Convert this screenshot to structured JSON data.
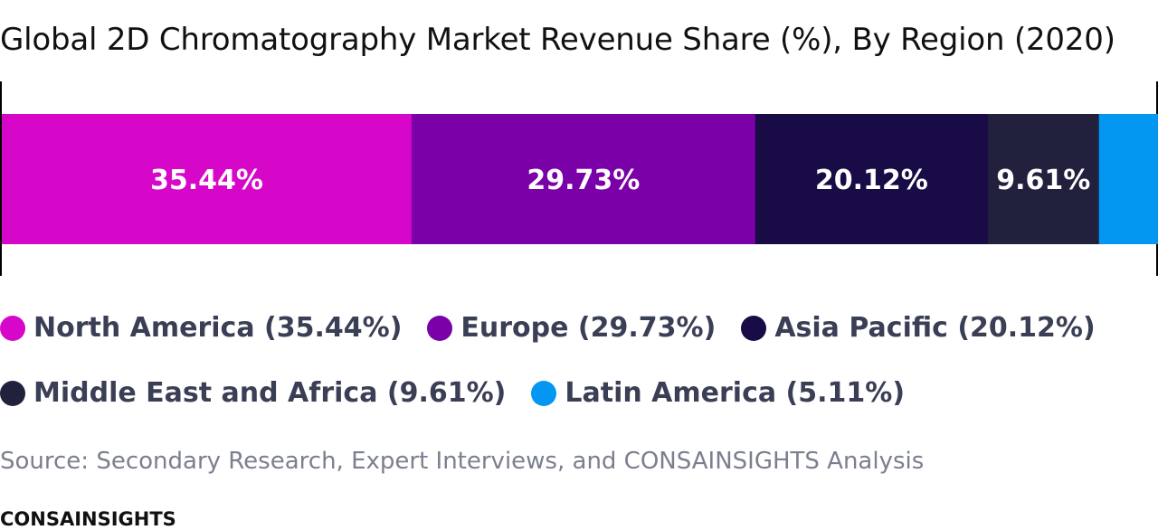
{
  "title": "Global 2D Chromatography Market Revenue Share (%), By Region (2020)",
  "chart_data": {
    "type": "bar",
    "orientation": "horizontal-stacked",
    "unit": "%",
    "categories": [
      "North America",
      "Europe",
      "Asia Pacific",
      "Middle East and Africa",
      "Latin America"
    ],
    "values": [
      35.44,
      29.73,
      20.12,
      9.61,
      5.11
    ],
    "segment_labels": [
      "35.44%",
      "29.73%",
      "20.12%",
      "9.61%",
      ""
    ],
    "colors": [
      "#d607c9",
      "#7a00a7",
      "#190b45",
      "#21203d",
      "#0397f1"
    ],
    "legend_position": "bottom"
  },
  "legend": [
    {
      "label": "North America (35.44%)",
      "color": "#d607c9"
    },
    {
      "label": "Europe (29.73%)",
      "color": "#7a00a7"
    },
    {
      "label": "Asia Pacific (20.12%)",
      "color": "#190b45"
    },
    {
      "label": "Middle East and Africa (9.61%)",
      "color": "#21203d"
    },
    {
      "label": "Latin America (5.11%)",
      "color": "#0397f1"
    }
  ],
  "source": "Source: Secondary Research, Expert Interviews, and CONSAINSIGHTS Analysis",
  "brand": "CONSAINSIGHTS"
}
